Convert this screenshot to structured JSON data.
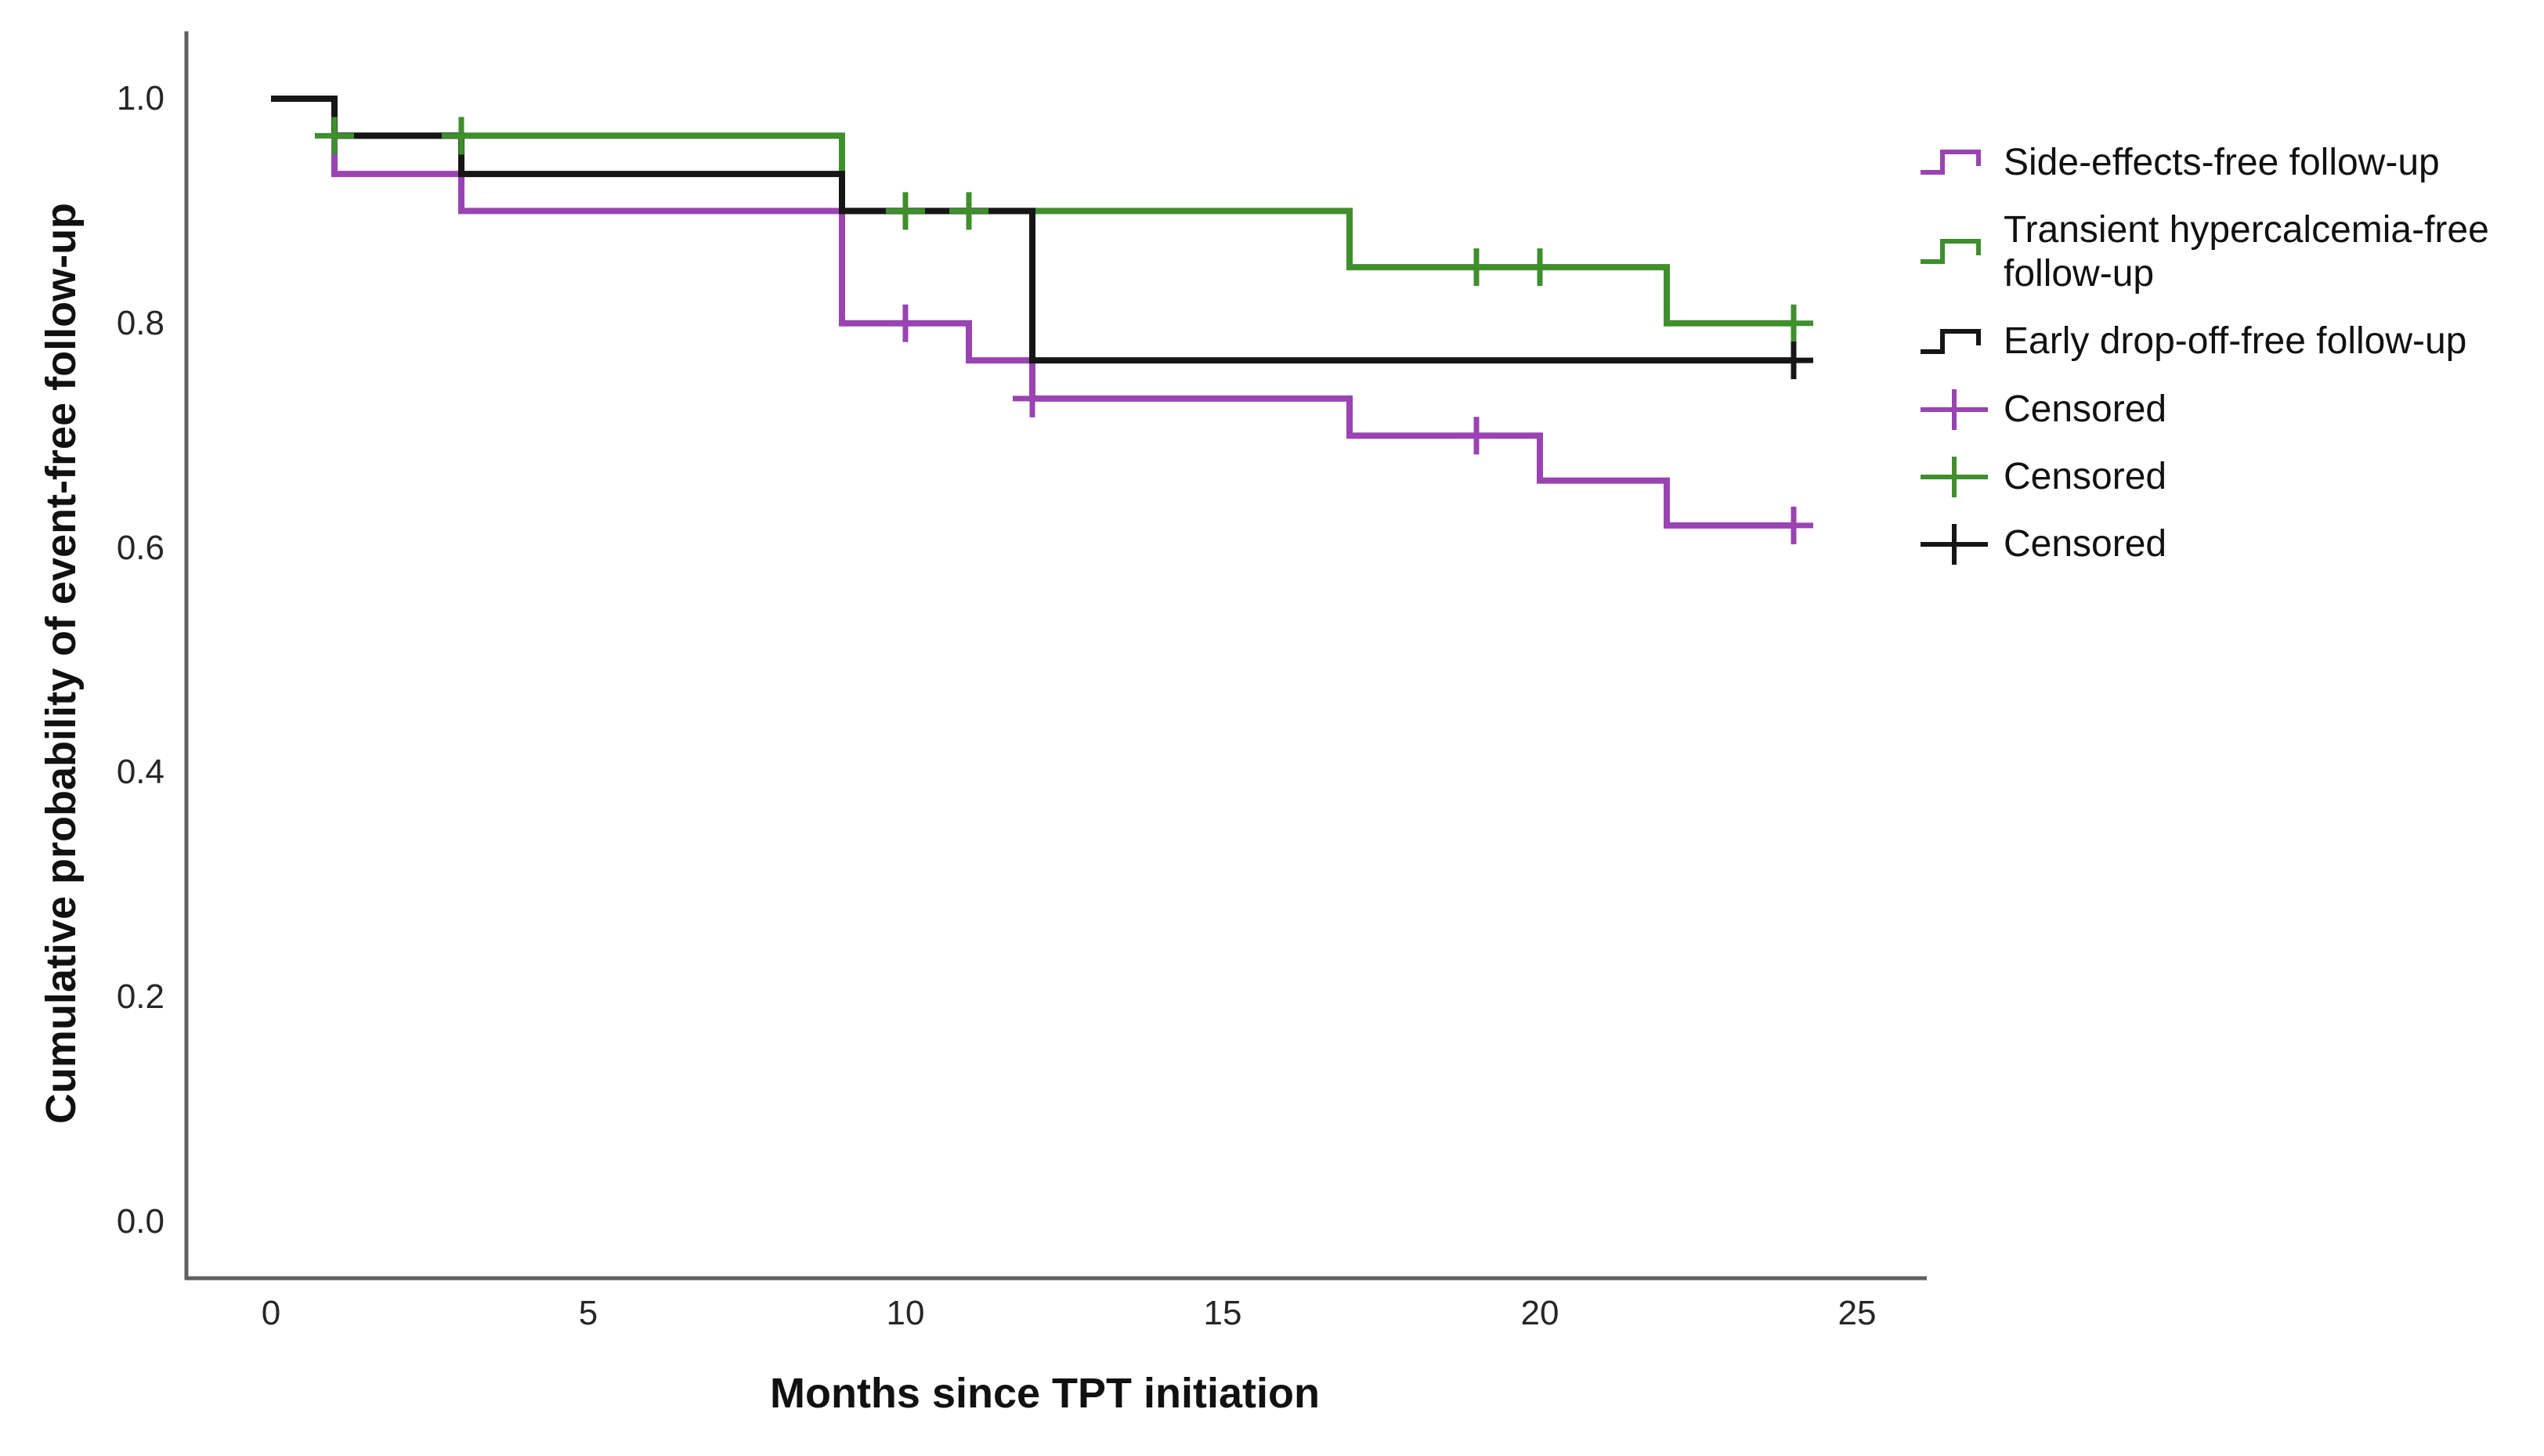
{
  "chart_data": {
    "type": "line",
    "subtype": "kaplan-meier-step",
    "title": "",
    "xlabel": "Months since TPT initiation",
    "ylabel": "Cumulative probability of event-free follow-up",
    "xticks": [
      {
        "label": "0",
        "value": 0
      },
      {
        "label": "5",
        "value": 5
      },
      {
        "label": "10",
        "value": 10
      },
      {
        "label": "15",
        "value": 15
      },
      {
        "label": "20",
        "value": 20
      },
      {
        "label": "25",
        "value": 25
      }
    ],
    "yticks": [
      {
        "label": "1.0",
        "value": 1.0
      },
      {
        "label": "0.8",
        "value": 0.8
      },
      {
        "label": "0.6",
        "value": 0.6
      },
      {
        "label": "0.4",
        "value": 0.4
      },
      {
        "label": "0.2",
        "value": 0.2
      },
      {
        "label": "0.0",
        "value": 0.0
      }
    ],
    "xlim": [
      -1.3,
      25.8
    ],
    "ylim": [
      0.0,
      1.05
    ],
    "grid": false,
    "legend_position": "right",
    "axis_color": "#606060",
    "series": [
      {
        "name": "Side-effects-free follow-up",
        "slug": "side-effects-free",
        "color": "#9A43B2",
        "points": [
          [
            0,
            1.0
          ],
          [
            1,
            1.0
          ],
          [
            1,
            0.933
          ],
          [
            3,
            0.933
          ],
          [
            3,
            0.9
          ],
          [
            9,
            0.9
          ],
          [
            9,
            0.8
          ],
          [
            11,
            0.8
          ],
          [
            11,
            0.767
          ],
          [
            12,
            0.767
          ],
          [
            12,
            0.733
          ],
          [
            17,
            0.733
          ],
          [
            17,
            0.7
          ],
          [
            20,
            0.7
          ],
          [
            20,
            0.66
          ],
          [
            22,
            0.66
          ],
          [
            22,
            0.62
          ],
          [
            24,
            0.62
          ]
        ],
        "censors": [
          [
            10,
            0.8
          ],
          [
            12,
            0.733
          ],
          [
            19,
            0.7
          ],
          [
            24,
            0.62
          ]
        ]
      },
      {
        "name": "Transient hypercalcemia-free follow-up",
        "slug": "transient-hypercalcemia-free",
        "color": "#3F8F2D",
        "points": [
          [
            0,
            1.0
          ],
          [
            1,
            1.0
          ],
          [
            1,
            0.967
          ],
          [
            9,
            0.967
          ],
          [
            9,
            0.9
          ],
          [
            17,
            0.9
          ],
          [
            17,
            0.85
          ],
          [
            22,
            0.85
          ],
          [
            22,
            0.8
          ],
          [
            24,
            0.8
          ]
        ],
        "censors": [
          [
            1,
            0.967
          ],
          [
            3,
            0.967
          ],
          [
            10,
            0.9
          ],
          [
            11,
            0.9
          ],
          [
            19,
            0.85
          ],
          [
            20,
            0.85
          ],
          [
            24,
            0.8
          ]
        ]
      },
      {
        "name": "Early drop-off-free follow-up",
        "slug": "early-drop-off-free",
        "color": "#161616",
        "points": [
          [
            0,
            1.0
          ],
          [
            1,
            1.0
          ],
          [
            1,
            0.967
          ],
          [
            3,
            0.967
          ],
          [
            3,
            0.933
          ],
          [
            9,
            0.933
          ],
          [
            9,
            0.9
          ],
          [
            12,
            0.9
          ],
          [
            12,
            0.767
          ],
          [
            24,
            0.767
          ]
        ],
        "censors": [
          [
            24,
            0.767
          ]
        ]
      }
    ],
    "legend": [
      {
        "label": "Side-effects-free follow-up",
        "marker": "step",
        "color": "#9A43B2"
      },
      {
        "label": "Transient hypercalcemia-free\nfollow-up",
        "marker": "step",
        "color": "#3F8F2D"
      },
      {
        "label": "Early drop-off-free follow-up",
        "marker": "step",
        "color": "#161616"
      },
      {
        "label": "Censored",
        "marker": "plus",
        "color": "#9A43B2"
      },
      {
        "label": "Censored",
        "marker": "plus",
        "color": "#3F8F2D"
      },
      {
        "label": "Censored",
        "marker": "plus",
        "color": "#161616"
      }
    ]
  }
}
